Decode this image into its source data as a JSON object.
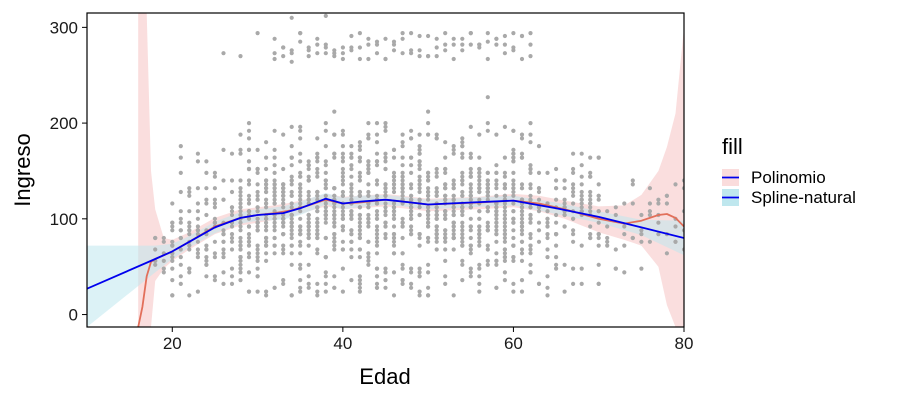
{
  "chart_data": {
    "type": "scatter",
    "xlabel": "Edad",
    "ylabel": "Ingreso",
    "xlim": [
      10,
      80
    ],
    "ylim": [
      -13,
      315
    ],
    "xticks": [
      20,
      40,
      60,
      80
    ],
    "yticks": [
      0,
      100,
      200,
      300
    ],
    "grid": false,
    "legend": {
      "title": "fill",
      "position": "right",
      "entries": [
        {
          "label": "Polinomio",
          "line_color": "#0000ee",
          "fill_color": "#fadcdc"
        },
        {
          "label": "Spline-natural",
          "line_color": "#0000ee",
          "fill_color": "#bfe7ee"
        }
      ]
    },
    "point_color": "#a9a9a9",
    "point_age_range": [
      18,
      80
    ],
    "point_income_band_main": [
      20,
      200
    ],
    "point_income_band_high": [
      255,
      312
    ],
    "series": [
      {
        "name": "Polinomio",
        "line_color": "#e26f5a",
        "band_color": "#fadcdc",
        "x": [
          16,
          16.5,
          17,
          17.5,
          18,
          19,
          20,
          22,
          25,
          28,
          30,
          32,
          34,
          36,
          38,
          40,
          42,
          45,
          48,
          50,
          53,
          56,
          60,
          63,
          66,
          70,
          73,
          75,
          77,
          78,
          79,
          80
        ],
        "y": [
          -13,
          8,
          40,
          55,
          58,
          62,
          66,
          76,
          92,
          101,
          104,
          106,
          109,
          114,
          120,
          116,
          117,
          120,
          117,
          115,
          116,
          117,
          119,
          116,
          110,
          100,
          95,
          98,
          104,
          105,
          101,
          92
        ],
        "band_upper": [
          315,
          315,
          315,
          150,
          110,
          80,
          78,
          86,
          101,
          110,
          112,
          114,
          117,
          121,
          126,
          123,
          124,
          126,
          123,
          121,
          122,
          123,
          126,
          124,
          119,
          113,
          114,
          125,
          150,
          175,
          210,
          300
        ],
        "band_lower": [
          -13,
          -13,
          -13,
          -13,
          35,
          48,
          56,
          68,
          84,
          93,
          96,
          99,
          102,
          108,
          113,
          110,
          111,
          113,
          110,
          108,
          109,
          110,
          112,
          108,
          100,
          86,
          78,
          72,
          50,
          10,
          -13,
          -13
        ]
      },
      {
        "name": "Spline-natural",
        "line_color": "#0000ee",
        "band_color": "#bfe7ee",
        "x": [
          10,
          18,
          20,
          22,
          25,
          28,
          30,
          33,
          35,
          38,
          40,
          42,
          45,
          48,
          50,
          55,
          60,
          65,
          70,
          75,
          80
        ],
        "y": [
          27,
          58,
          66,
          76,
          91,
          101,
          104,
          106,
          111,
          121,
          116,
          118,
          120,
          117,
          115,
          117,
          119,
          111,
          102,
          91,
          80
        ],
        "band_upper": [
          72,
          72,
          74,
          82,
          97,
          107,
          110,
          113,
          118,
          127,
          122,
          124,
          125,
          122,
          120,
          122,
          124,
          117,
          108,
          99,
          98
        ],
        "band_lower": [
          -13,
          44,
          58,
          70,
          85,
          95,
          98,
          99,
          104,
          115,
          110,
          112,
          115,
          112,
          110,
          112,
          114,
          105,
          96,
          83,
          62
        ]
      }
    ]
  }
}
